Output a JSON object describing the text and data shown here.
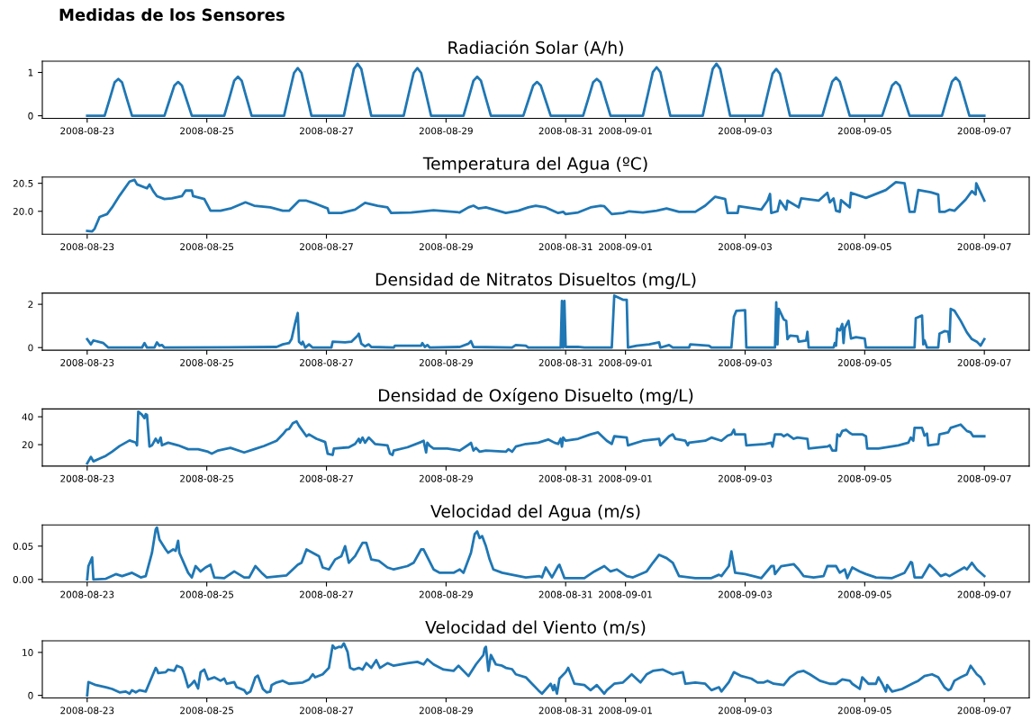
{
  "chart_data": [
    {
      "type": "line",
      "title": "Radiación Solar (A/h)",
      "annotations": [
        "Medidas de los Sensores"
      ],
      "color": "#1f77b4",
      "x": [
        "2008-08-23T00:00",
        "2008-08-23T07:00",
        "2008-08-23T09:00",
        "2008-08-23T11:00",
        "2008-08-23T12:30",
        "2008-08-23T14:00",
        "2008-08-23T16:00",
        "2008-08-23T18:00",
        "2008-08-24T07:00",
        "2008-08-24T09:00",
        "2008-08-24T11:00",
        "2008-08-24T12:30",
        "2008-08-24T14:00",
        "2008-08-24T16:00",
        "2008-08-24T18:00",
        "2008-08-25T07:00",
        "2008-08-25T09:00",
        "2008-08-25T11:00",
        "2008-08-25T12:30",
        "2008-08-25T14:00",
        "2008-08-25T16:00",
        "2008-08-25T18:00",
        "2008-08-26T07:00",
        "2008-08-26T09:00",
        "2008-08-26T11:00",
        "2008-08-26T12:30",
        "2008-08-26T14:00",
        "2008-08-26T16:00",
        "2008-08-26T18:00",
        "2008-08-27T07:00",
        "2008-08-27T09:00",
        "2008-08-27T11:00",
        "2008-08-27T12:30",
        "2008-08-27T14:00",
        "2008-08-27T16:00",
        "2008-08-27T18:00",
        "2008-08-28T07:00",
        "2008-08-28T09:00",
        "2008-08-28T11:00",
        "2008-08-28T12:30",
        "2008-08-28T14:00",
        "2008-08-28T16:00",
        "2008-08-28T18:00",
        "2008-08-29T07:00",
        "2008-08-29T09:00",
        "2008-08-29T11:00",
        "2008-08-29T12:30",
        "2008-08-29T14:00",
        "2008-08-29T16:00",
        "2008-08-29T18:00",
        "2008-08-30T07:00",
        "2008-08-30T09:00",
        "2008-08-30T11:00",
        "2008-08-30T12:30",
        "2008-08-30T14:00",
        "2008-08-30T16:00",
        "2008-08-30T18:00",
        "2008-08-31T07:00",
        "2008-08-31T09:00",
        "2008-08-31T11:00",
        "2008-08-31T12:30",
        "2008-08-31T14:00",
        "2008-08-31T16:00",
        "2008-08-31T18:00",
        "2008-09-01T07:00",
        "2008-09-01T09:00",
        "2008-09-01T11:00",
        "2008-09-01T12:30",
        "2008-09-01T14:00",
        "2008-09-01T16:00",
        "2008-09-01T18:00",
        "2008-09-02T07:00",
        "2008-09-02T09:00",
        "2008-09-02T11:00",
        "2008-09-02T12:30",
        "2008-09-02T14:00",
        "2008-09-02T16:00",
        "2008-09-02T18:00",
        "2008-09-03T07:00",
        "2008-09-03T09:00",
        "2008-09-03T11:00",
        "2008-09-03T12:30",
        "2008-09-03T14:00",
        "2008-09-03T16:00",
        "2008-09-03T18:00",
        "2008-09-04T07:00",
        "2008-09-04T09:00",
        "2008-09-04T11:00",
        "2008-09-04T12:30",
        "2008-09-04T14:00",
        "2008-09-04T16:00",
        "2008-09-04T18:00",
        "2008-09-05T07:00",
        "2008-09-05T09:00",
        "2008-09-05T11:00",
        "2008-09-05T12:30",
        "2008-09-05T14:00",
        "2008-09-05T16:00",
        "2008-09-05T18:00",
        "2008-09-06T07:00",
        "2008-09-06T09:00",
        "2008-09-06T11:00",
        "2008-09-06T12:30",
        "2008-09-06T14:00",
        "2008-09-06T16:00",
        "2008-09-06T18:00",
        "2008-09-07T00:00"
      ],
      "values": [
        0,
        0,
        0.38,
        0.77,
        0.85,
        0.77,
        0.38,
        0,
        0,
        0.35,
        0.7,
        0.78,
        0.7,
        0.35,
        0,
        0,
        0.4,
        0.81,
        0.9,
        0.81,
        0.4,
        0,
        0,
        0.5,
        0.99,
        1.1,
        0.99,
        0.5,
        0,
        0,
        0.54,
        1.08,
        1.2,
        1.08,
        0.54,
        0,
        0,
        0.5,
        0.99,
        1.1,
        0.99,
        0.5,
        0,
        0,
        0.4,
        0.81,
        0.9,
        0.81,
        0.4,
        0,
        0,
        0.35,
        0.7,
        0.78,
        0.7,
        0.35,
        0,
        0,
        0.38,
        0.77,
        0.85,
        0.77,
        0.38,
        0,
        0,
        0.5,
        1.01,
        1.12,
        1.01,
        0.5,
        0,
        0,
        0.54,
        1.08,
        1.2,
        1.08,
        0.54,
        0,
        0,
        0.49,
        0.97,
        1.08,
        0.97,
        0.49,
        0,
        0,
        0.4,
        0.79,
        0.88,
        0.79,
        0.4,
        0,
        0,
        0.35,
        0.7,
        0.78,
        0.7,
        0.35,
        0,
        0,
        0.4,
        0.79,
        0.88,
        0.79,
        0.4,
        0,
        0
      ],
      "xlim": [
        "2008-08-22T06:00",
        "2008-09-07T18:00"
      ],
      "xticks": [
        "2008-08-23",
        "2008-08-25",
        "2008-08-27",
        "2008-08-29",
        "2008-08-31",
        "2008-09-01",
        "2008-09-03",
        "2008-09-05",
        "2008-09-07"
      ],
      "ylim": [
        -0.06,
        1.26
      ],
      "yticks": [
        0,
        1
      ]
    },
    {
      "type": "line",
      "title": "Temperatura del Agua (ºC)",
      "color": "#1f77b4",
      "x": [
        "2008-08-23T00:00",
        "2008-08-23T02:00",
        "2008-08-23T03:00",
        "2008-08-23T05:00",
        "2008-08-23T08:00",
        "2008-08-23T10:00",
        "2008-08-23T13:00",
        "2008-08-23T17:00",
        "2008-08-23T19:00",
        "2008-08-23T20:00",
        "2008-08-24T00:00",
        "2008-08-24T01:00",
        "2008-08-24T02:30",
        "2008-08-24T04:00",
        "2008-08-24T07:00",
        "2008-08-24T10:00",
        "2008-08-24T14:00",
        "2008-08-24T15:30",
        "2008-08-24T18:00",
        "2008-08-24T18:30",
        "2008-08-24T23:00",
        "2008-08-25T01:30",
        "2008-08-25T05:30",
        "2008-08-25T09:30",
        "2008-08-25T15:30",
        "2008-08-25T19:00",
        "2008-08-26T01:30",
        "2008-08-26T06:30",
        "2008-08-26T09:00",
        "2008-08-26T13:00",
        "2008-08-26T16:00",
        "2008-08-26T20:00",
        "2008-08-27T00:30",
        "2008-08-27T01:00",
        "2008-08-27T06:00",
        "2008-08-27T11:30",
        "2008-08-27T15:30",
        "2008-08-27T20:30",
        "2008-08-28T00:30",
        "2008-08-28T02:00",
        "2008-08-28T10:00",
        "2008-08-28T19:00",
        "2008-08-29T05:30",
        "2008-08-29T09:00",
        "2008-08-29T11:00",
        "2008-08-29T13:00",
        "2008-08-29T16:00",
        "2008-08-30T00:00",
        "2008-08-30T05:00",
        "2008-08-30T09:00",
        "2008-08-30T12:00",
        "2008-08-30T16:00",
        "2008-08-30T21:00",
        "2008-08-30T23:00",
        "2008-08-31T00:00",
        "2008-08-31T05:00",
        "2008-08-31T10:00",
        "2008-08-31T14:00",
        "2008-08-31T15:30",
        "2008-08-31T18:30",
        "2008-08-31T23:00",
        "2008-09-01T01:30",
        "2008-09-01T07:00",
        "2008-09-01T12:30",
        "2008-09-01T16:30",
        "2008-09-01T21:30",
        "2008-09-02T04:00",
        "2008-09-02T08:00",
        "2008-09-02T12:00",
        "2008-09-02T16:00",
        "2008-09-02T17:00",
        "2008-09-02T21:00",
        "2008-09-02T21:30",
        "2008-09-03T06:30",
        "2008-09-03T09:00",
        "2008-09-03T10:00",
        "2008-09-03T10:30",
        "2008-09-03T13:00",
        "2008-09-03T14:00",
        "2008-09-03T16:30",
        "2008-09-03T17:00",
        "2008-09-03T21:30",
        "2008-09-03T22:30",
        "2008-09-04T05:30",
        "2008-09-04T09:00",
        "2008-09-04T10:00",
        "2008-09-04T11:30",
        "2008-09-04T12:30",
        "2008-09-04T14:00",
        "2008-09-04T14:30",
        "2008-09-04T18:00",
        "2008-09-04T18:30",
        "2008-09-05T00:30",
        "2008-09-05T08:30",
        "2008-09-05T12:30",
        "2008-09-05T16:00",
        "2008-09-05T18:00",
        "2008-09-05T20:00",
        "2008-09-05T21:30",
        "2008-09-06T02:30",
        "2008-09-06T05:30",
        "2008-09-06T06:00",
        "2008-09-06T08:00",
        "2008-09-06T10:00",
        "2008-09-06T12:00",
        "2008-09-06T16:30",
        "2008-09-06T19:00",
        "2008-09-06T20:30",
        "2008-09-06T20:45",
        "2008-09-07T00:00"
      ],
      "values": [
        19.65,
        19.64,
        19.69,
        19.9,
        19.95,
        20.07,
        20.28,
        20.53,
        20.56,
        20.48,
        20.41,
        20.48,
        20.36,
        20.27,
        20.22,
        20.23,
        20.27,
        20.37,
        20.37,
        20.27,
        20.22,
        20.01,
        20.01,
        20.05,
        20.16,
        20.1,
        20.07,
        20.01,
        20.01,
        20.19,
        20.19,
        20.13,
        20.05,
        19.97,
        19.97,
        20.03,
        20.15,
        20.1,
        20.07,
        19.97,
        19.98,
        20.02,
        19.98,
        20.07,
        20.1,
        20.05,
        20.07,
        19.97,
        20.01,
        20.07,
        20.1,
        20.07,
        19.97,
        19.99,
        19.95,
        19.98,
        20.07,
        20.1,
        20.09,
        19.95,
        19.97,
        20.0,
        19.98,
        20.01,
        20.05,
        19.99,
        19.99,
        20.1,
        20.26,
        20.22,
        19.97,
        19.97,
        20.09,
        20.03,
        20.19,
        20.31,
        19.97,
        20.0,
        20.19,
        20.03,
        20.19,
        20.07,
        20.23,
        20.19,
        20.33,
        20.16,
        20.23,
        20.01,
        19.99,
        20.2,
        20.07,
        20.33,
        20.24,
        20.38,
        20.52,
        20.5,
        19.99,
        19.99,
        20.38,
        20.34,
        20.3,
        19.99,
        19.99,
        20.03,
        20.01,
        20.21,
        20.36,
        20.3,
        20.5,
        20.19
      ],
      "xlim": [
        "2008-08-22T06:00",
        "2008-09-07T18:00"
      ],
      "xticks": [
        "2008-08-23",
        "2008-08-25",
        "2008-08-27",
        "2008-08-29",
        "2008-08-31",
        "2008-09-01",
        "2008-09-03",
        "2008-09-05",
        "2008-09-07"
      ],
      "ylim": [
        19.59,
        20.61
      ],
      "yticks": [
        {
          "value": 20,
          "label": "20.0"
        },
        20.5
      ]
    },
    {
      "type": "line",
      "title": "Densidad de Nitratos Disueltos (mg/L)",
      "color": "#1f77b4",
      "x": [
        "2008-08-23T00:00",
        "2008-08-23T01:30",
        "2008-08-23T02:30",
        "2008-08-23T06:30",
        "2008-08-23T08:30",
        "2008-08-23T22:00",
        "2008-08-23T23:00",
        "2008-08-24T00:00",
        "2008-08-24T03:00",
        "2008-08-24T04:00",
        "2008-08-24T05:00",
        "2008-08-24T06:00",
        "2008-08-24T07:00",
        "2008-08-26T04:00",
        "2008-08-26T06:30",
        "2008-08-26T09:00",
        "2008-08-26T10:00",
        "2008-08-26T11:30",
        "2008-08-26T12:30",
        "2008-08-26T13:00",
        "2008-08-26T14:00",
        "2008-08-26T14:30",
        "2008-08-26T15:30",
        "2008-08-26T17:00",
        "2008-08-26T18:30",
        "2008-08-27T02:00",
        "2008-08-27T02:30",
        "2008-08-27T07:30",
        "2008-08-27T10:00",
        "2008-08-27T12:30",
        "2008-08-27T13:00",
        "2008-08-27T14:00",
        "2008-08-27T15:30",
        "2008-08-27T17:00",
        "2008-08-27T18:00",
        "2008-08-28T03:00",
        "2008-08-28T03:30",
        "2008-08-28T14:00",
        "2008-08-28T14:30",
        "2008-08-28T15:30",
        "2008-08-28T16:30",
        "2008-08-28T17:30",
        "2008-08-29T05:30",
        "2008-08-29T09:00",
        "2008-08-29T10:00",
        "2008-08-29T11:00",
        "2008-08-30T02:30",
        "2008-08-30T04:00",
        "2008-08-30T08:00",
        "2008-08-30T09:00",
        "2008-08-30T22:00",
        "2008-08-30T22:30",
        "2008-08-30T23:00",
        "2008-08-30T23:30",
        "2008-08-31T00:00",
        "2008-08-31T05:00",
        "2008-08-31T07:30",
        "2008-08-31T18:30",
        "2008-08-31T19:30",
        "2008-08-31T23:00",
        "2008-09-01T00:30",
        "2008-09-01T01:00",
        "2008-09-01T04:30",
        "2008-09-01T09:30",
        "2008-09-01T13:30",
        "2008-09-01T14:00",
        "2008-09-01T17:30",
        "2008-09-01T19:00",
        "2008-09-02T01:30",
        "2008-09-02T02:00",
        "2008-09-02T09:30",
        "2008-09-02T10:30",
        "2008-09-02T18:30",
        "2008-09-02T19:30",
        "2008-09-02T20:30",
        "2008-09-03T00:00",
        "2008-09-03T00:30",
        "2008-09-03T12:00",
        "2008-09-03T12:30",
        "2008-09-03T13:00",
        "2008-09-03T13:30",
        "2008-09-03T15:30",
        "2008-09-03T16:30",
        "2008-09-03T17:00",
        "2008-09-03T18:00",
        "2008-09-03T21:00",
        "2008-09-03T21:30",
        "2008-09-04T00:30",
        "2008-09-04T01:00",
        "2008-09-04T01:30",
        "2008-09-04T11:30",
        "2008-09-04T12:00",
        "2008-09-04T12:30",
        "2008-09-04T13:00",
        "2008-09-04T14:00",
        "2008-09-04T15:00",
        "2008-09-04T15:30",
        "2008-09-04T16:00",
        "2008-09-04T17:30",
        "2008-09-04T18:30",
        "2008-09-04T20:30",
        "2008-09-05T00:00",
        "2008-09-05T00:30",
        "2008-09-05T20:00",
        "2008-09-05T20:30",
        "2008-09-05T23:00",
        "2008-09-05T23:30",
        "2008-09-06T00:00",
        "2008-09-06T01:00",
        "2008-09-06T05:30",
        "2008-09-06T06:00",
        "2008-09-06T08:00",
        "2008-09-06T09:30",
        "2008-09-06T10:00",
        "2008-09-06T10:30",
        "2008-09-06T12:00",
        "2008-09-06T14:30",
        "2008-09-06T17:00",
        "2008-09-06T19:00",
        "2008-09-06T21:00",
        "2008-09-06T21:30",
        "2008-09-06T22:30",
        "2008-09-07T00:00"
      ],
      "values": [
        0.39,
        0.15,
        0.33,
        0.21,
        0,
        0,
        0.21,
        0,
        0,
        0.24,
        0.09,
        0.12,
        0,
        0.03,
        0.15,
        0.21,
        0.39,
        1.15,
        1.6,
        0.27,
        0.15,
        0.27,
        0,
        0.15,
        0,
        0,
        0.27,
        0.24,
        0.27,
        0.55,
        0.64,
        0.18,
        0.06,
        0.15,
        0.03,
        0,
        0.09,
        0.09,
        0.21,
        0.03,
        0.12,
        0,
        0.03,
        0.18,
        0.3,
        0.03,
        0,
        0.12,
        0.09,
        0,
        0,
        2.15,
        0,
        2.15,
        0.03,
        0.03,
        0,
        0,
        2.4,
        2.21,
        2.21,
        0,
        0.09,
        0.15,
        0.24,
        0,
        0.12,
        0,
        0,
        0.15,
        0.09,
        0,
        0,
        1.42,
        1.7,
        1.73,
        0,
        0,
        2.09,
        0.15,
        1.79,
        1.3,
        1.24,
        0.39,
        0.55,
        0.52,
        0.27,
        0.33,
        0.73,
        0,
        0,
        0.21,
        0.09,
        0.88,
        0.79,
        1.09,
        0.21,
        0.91,
        1.24,
        0.42,
        0.48,
        0.42,
        0,
        0,
        1.36,
        1.48,
        0.15,
        0.33,
        0,
        0,
        0.64,
        0.76,
        0.73,
        0.27,
        1.79,
        1.7,
        1.24,
        0.7,
        0.39,
        0.27,
        0.21,
        0.09,
        0.39
      ],
      "xlim": [
        "2008-08-22T06:00",
        "2008-09-07T18:00"
      ],
      "xticks": [
        "2008-08-23",
        "2008-08-25",
        "2008-08-27",
        "2008-08-29",
        "2008-08-31",
        "2008-09-01",
        "2008-09-03",
        "2008-09-05",
        "2008-09-07"
      ],
      "ylim": [
        -0.12,
        2.52
      ],
      "yticks": [
        0,
        2
      ]
    },
    {
      "type": "line",
      "title": "Densidad de Oxígeno Disuelto (mg/L)",
      "color": "#1f77b4",
      "x": [
        "2008-08-23T00:00",
        "2008-08-23T01:30",
        "2008-08-23T02:30",
        "2008-08-23T05:00",
        "2008-08-23T07:30",
        "2008-08-23T10:00",
        "2008-08-23T13:00",
        "2008-08-23T17:00",
        "2008-08-23T19:30",
        "2008-08-23T20:00",
        "2008-08-23T20:30",
        "2008-08-23T22:00",
        "2008-08-23T23:00",
        "2008-08-23T23:30",
        "2008-08-24T00:00",
        "2008-08-24T01:00",
        "2008-08-24T02:00",
        "2008-08-24T03:30",
        "2008-08-24T04:30",
        "2008-08-24T05:30",
        "2008-08-24T06:00",
        "2008-08-24T08:30",
        "2008-08-24T12:30",
        "2008-08-24T16:30",
        "2008-08-24T20:30",
        "2008-08-25T00:30",
        "2008-08-25T02:00",
        "2008-08-25T04:30",
        "2008-08-25T09:30",
        "2008-08-25T15:00",
        "2008-08-25T19:00",
        "2008-08-25T23:00",
        "2008-08-26T04:00",
        "2008-08-26T06:30",
        "2008-08-26T08:00",
        "2008-08-26T09:00",
        "2008-08-26T10:30",
        "2008-08-26T12:00",
        "2008-08-26T13:00",
        "2008-08-26T16:00",
        "2008-08-26T17:00",
        "2008-08-26T20:00",
        "2008-08-26T23:30",
        "2008-08-27T00:30",
        "2008-08-27T02:30",
        "2008-08-27T03:00",
        "2008-08-27T09:00",
        "2008-08-27T11:30",
        "2008-08-27T13:00",
        "2008-08-27T13:30",
        "2008-08-27T14:30",
        "2008-08-27T15:30",
        "2008-08-27T17:00",
        "2008-08-27T19:30",
        "2008-08-28T00:30",
        "2008-08-28T01:30",
        "2008-08-28T02:30",
        "2008-08-28T03:00",
        "2008-08-28T08:30",
        "2008-08-28T14:00",
        "2008-08-28T15:00",
        "2008-08-28T16:00",
        "2008-08-28T16:30",
        "2008-08-28T17:30",
        "2008-08-28T19:00",
        "2008-08-29T00:30",
        "2008-08-29T05:30",
        "2008-08-29T09:30",
        "2008-08-29T10:00",
        "2008-08-29T11:00",
        "2008-08-29T12:00",
        "2008-08-29T13:30",
        "2008-08-29T16:00",
        "2008-08-30T00:00",
        "2008-08-30T01:00",
        "2008-08-30T02:30",
        "2008-08-30T04:00",
        "2008-08-30T08:00",
        "2008-08-30T13:00",
        "2008-08-30T17:00",
        "2008-08-30T19:30",
        "2008-08-30T21:00",
        "2008-08-30T22:00",
        "2008-08-30T22:30",
        "2008-08-30T23:00",
        "2008-08-31T00:00",
        "2008-08-31T05:00",
        "2008-08-31T10:00",
        "2008-08-31T13:00",
        "2008-08-31T16:30",
        "2008-08-31T18:30",
        "2008-08-31T19:30",
        "2008-09-01T00:30",
        "2008-09-01T01:00",
        "2008-09-01T07:00",
        "2008-09-01T13:30",
        "2008-09-01T14:00",
        "2008-09-01T17:30",
        "2008-09-01T19:00",
        "2008-09-01T20:00",
        "2008-09-02T00:00",
        "2008-09-02T01:00",
        "2008-09-02T01:30",
        "2008-09-02T08:00",
        "2008-09-02T10:30",
        "2008-09-02T14:30",
        "2008-09-02T17:00",
        "2008-09-02T18:30",
        "2008-09-02T19:30",
        "2008-09-02T20:00",
        "2008-09-03T00:00",
        "2008-09-03T00:30",
        "2008-09-03T08:00",
        "2008-09-03T10:30",
        "2008-09-03T11:00",
        "2008-09-03T12:00",
        "2008-09-03T14:30",
        "2008-09-03T15:30",
        "2008-09-03T17:00",
        "2008-09-03T19:30",
        "2008-09-03T21:00",
        "2008-09-04T01:00",
        "2008-09-04T01:30",
        "2008-09-04T09:00",
        "2008-09-04T10:00",
        "2008-09-04T11:00",
        "2008-09-04T12:30",
        "2008-09-04T13:00",
        "2008-09-04T14:00",
        "2008-09-04T15:00",
        "2008-09-04T16:30",
        "2008-09-04T18:00",
        "2008-09-04T19:00",
        "2008-09-04T23:00",
        "2008-09-05T00:30",
        "2008-09-05T01:00",
        "2008-09-05T05:30",
        "2008-09-05T13:30",
        "2008-09-05T17:30",
        "2008-09-05T18:30",
        "2008-09-05T19:30",
        "2008-09-05T20:00",
        "2008-09-05T23:00",
        "2008-09-06T00:00",
        "2008-09-06T01:00",
        "2008-09-06T01:30",
        "2008-09-06T05:30",
        "2008-09-06T06:00",
        "2008-09-06T09:30",
        "2008-09-06T10:30",
        "2008-09-06T14:30",
        "2008-09-06T17:00",
        "2008-09-06T18:30",
        "2008-09-06T19:30",
        "2008-09-07T00:00"
      ],
      "values": [
        6.5,
        11.2,
        8,
        10,
        12,
        15,
        19,
        23,
        21.5,
        19.5,
        43.7,
        41.4,
        39,
        41.9,
        41.4,
        18.6,
        19.5,
        24.2,
        21.4,
        25.1,
        19.5,
        21.4,
        19.5,
        16.7,
        16.7,
        14.9,
        13.5,
        15.8,
        17.7,
        14.4,
        16.7,
        19.1,
        22.8,
        27.4,
        30.7,
        31.2,
        35.3,
        36.7,
        33.5,
        26,
        27.4,
        24.2,
        21.9,
        13.5,
        12.6,
        17.2,
        18.1,
        20.5,
        24.2,
        21.4,
        25.1,
        21.4,
        25.1,
        20.5,
        19.5,
        13.5,
        12.6,
        15.8,
        18.1,
        21.9,
        22.8,
        14.4,
        21.4,
        19.1,
        17.2,
        17.2,
        15.8,
        20.5,
        21.4,
        15.8,
        17.7,
        14.9,
        15.8,
        14.9,
        16.7,
        14.9,
        18.6,
        20.5,
        21.4,
        23.7,
        21.4,
        20.5,
        24.2,
        18.6,
        25.1,
        22.8,
        24.2,
        27.4,
        28.8,
        22.8,
        20.5,
        26,
        25.1,
        19.5,
        22.8,
        24.2,
        19.5,
        26,
        27.4,
        24.2,
        22.8,
        19.5,
        21.4,
        22.8,
        25.1,
        22.8,
        26.5,
        27.4,
        30.7,
        27.4,
        27.4,
        19.5,
        20.5,
        21.4,
        18.6,
        27.4,
        27.4,
        26,
        27.4,
        24.2,
        25.1,
        24.2,
        17.2,
        18.6,
        19.5,
        15.8,
        15.8,
        27.4,
        26,
        29.8,
        30.7,
        28.4,
        27.4,
        27.4,
        26,
        17.2,
        17.2,
        19.5,
        21.4,
        25.1,
        22.8,
        32.1,
        32.1,
        26.5,
        27.9,
        19.5,
        20.5,
        27.4,
        28.8,
        32.1,
        34.4,
        29.8,
        28.8,
        26,
        26
      ],
      "xlim": [
        "2008-08-22T06:00",
        "2008-09-07T18:00"
      ],
      "xticks": [
        "2008-08-23",
        "2008-08-25",
        "2008-08-27",
        "2008-08-29",
        "2008-08-31",
        "2008-09-01",
        "2008-09-03",
        "2008-09-05",
        "2008-09-07"
      ],
      "ylim": [
        4.6,
        45.6
      ],
      "yticks": [
        20,
        40
      ]
    },
    {
      "type": "line",
      "title": "Velocidad del Agua (m/s)",
      "color": "#1f77b4",
      "x": [
        "2008-08-23T00:00",
        "2008-08-23T00:30",
        "2008-08-23T02:00",
        "2008-08-23T02:30",
        "2008-08-23T07:30",
        "2008-08-23T11:30",
        "2008-08-23T14:00",
        "2008-08-23T18:00",
        "2008-08-23T21:30",
        "2008-08-23T23:30",
        "2008-08-24T02:00",
        "2008-08-24T03:30",
        "2008-08-24T04:00",
        "2008-08-24T05:00",
        "2008-08-24T07:30",
        "2008-08-24T08:30",
        "2008-08-24T10:30",
        "2008-08-24T11:30",
        "2008-08-24T12:30",
        "2008-08-24T13:00",
        "2008-08-24T16:30",
        "2008-08-24T18:00",
        "2008-08-24T19:30",
        "2008-08-24T21:30",
        "2008-08-24T23:30",
        "2008-08-25T01:30",
        "2008-08-25T03:00",
        "2008-08-25T07:00",
        "2008-08-25T11:00",
        "2008-08-25T15:00",
        "2008-08-25T17:00",
        "2008-08-25T19:30",
        "2008-08-25T22:00",
        "2008-08-26T00:00",
        "2008-08-26T08:00",
        "2008-08-26T10:30",
        "2008-08-26T12:30",
        "2008-08-26T14:00",
        "2008-08-26T16:00",
        "2008-08-26T18:30",
        "2008-08-26T21:00",
        "2008-08-26T22:30",
        "2008-08-27T01:00",
        "2008-08-27T03:30",
        "2008-08-27T06:00",
        "2008-08-27T07:30",
        "2008-08-27T09:00",
        "2008-08-27T11:30",
        "2008-08-27T14:30",
        "2008-08-27T16:00",
        "2008-08-27T18:00",
        "2008-08-27T21:00",
        "2008-08-28T00:30",
        "2008-08-28T03:00",
        "2008-08-28T08:30",
        "2008-08-28T11:00",
        "2008-08-28T14:00",
        "2008-08-28T15:00",
        "2008-08-28T17:00",
        "2008-08-28T19:00",
        "2008-08-28T21:30",
        "2008-08-29T03:00",
        "2008-08-29T05:30",
        "2008-08-29T07:00",
        "2008-08-29T10:00",
        "2008-08-29T11:30",
        "2008-08-29T12:30",
        "2008-08-29T13:30",
        "2008-08-29T14:30",
        "2008-08-29T16:00",
        "2008-08-29T17:30",
        "2008-08-29T19:00",
        "2008-08-29T22:30",
        "2008-08-30T02:30",
        "2008-08-30T08:00",
        "2008-08-30T13:30",
        "2008-08-30T14:30",
        "2008-08-30T16:00",
        "2008-08-30T18:30",
        "2008-08-30T21:00",
        "2008-08-30T21:30",
        "2008-08-30T23:30",
        "2008-08-31T07:30",
        "2008-08-31T11:30",
        "2008-08-31T15:30",
        "2008-08-31T18:00",
        "2008-08-31T20:30",
        "2008-09-01T00:30",
        "2008-09-01T03:00",
        "2008-09-01T08:30",
        "2008-09-01T11:00",
        "2008-09-01T13:30",
        "2008-09-01T16:30",
        "2008-09-01T19:00",
        "2008-09-01T21:30",
        "2008-09-02T04:00",
        "2008-09-02T10:30",
        "2008-09-02T13:30",
        "2008-09-02T14:30",
        "2008-09-02T17:30",
        "2008-09-02T18:30",
        "2008-09-02T20:00",
        "2008-09-03T00:00",
        "2008-09-03T06:30",
        "2008-09-03T10:30",
        "2008-09-03T11:30",
        "2008-09-03T12:00",
        "2008-09-03T14:30",
        "2008-09-03T19:30",
        "2008-09-03T21:30",
        "2008-09-03T23:30",
        "2008-09-04T03:30",
        "2008-09-04T07:30",
        "2008-09-04T09:00",
        "2008-09-04T12:30",
        "2008-09-04T14:00",
        "2008-09-04T16:00",
        "2008-09-04T17:00",
        "2008-09-04T19:00",
        "2008-09-04T22:00",
        "2008-09-05T00:30",
        "2008-09-05T04:30",
        "2008-09-05T11:00",
        "2008-09-05T16:00",
        "2008-09-05T18:30",
        "2008-09-05T19:00",
        "2008-09-05T20:00",
        "2008-09-05T23:00",
        "2008-09-06T02:00",
        "2008-09-06T04:00",
        "2008-09-06T06:30",
        "2008-09-06T08:30",
        "2008-09-06T10:00",
        "2008-09-06T16:00",
        "2008-09-06T17:00",
        "2008-09-06T19:00",
        "2008-09-06T21:00",
        "2008-09-07T00:00"
      ],
      "values": [
        0,
        0.02,
        0.033,
        0,
        0.001,
        0.008,
        0.005,
        0.01,
        0.003,
        0.005,
        0.04,
        0.075,
        0.078,
        0.06,
        0.045,
        0.04,
        0.045,
        0.043,
        0.058,
        0.04,
        0.01,
        0.003,
        0.02,
        0.012,
        0.018,
        0.022,
        0.003,
        0.002,
        0.012,
        0.003,
        0.003,
        0.02,
        0.01,
        0.003,
        0.006,
        0.015,
        0.022,
        0.025,
        0.045,
        0.04,
        0.035,
        0.018,
        0.015,
        0.03,
        0.035,
        0.05,
        0.025,
        0.035,
        0.055,
        0.055,
        0.03,
        0.028,
        0.018,
        0.015,
        0.02,
        0.025,
        0.045,
        0.045,
        0.03,
        0.015,
        0.01,
        0.01,
        0.015,
        0.01,
        0.04,
        0.068,
        0.072,
        0.062,
        0.065,
        0.05,
        0.03,
        0.015,
        0.01,
        0.007,
        0.003,
        0.005,
        0.003,
        0.018,
        0.003,
        0.02,
        0.022,
        0.002,
        0.002,
        0.012,
        0.02,
        0.012,
        0.015,
        0.005,
        0.003,
        0.012,
        0.025,
        0.037,
        0.032,
        0.025,
        0.005,
        0.002,
        0.002,
        0.007,
        0.005,
        0.02,
        0.042,
        0.01,
        0.008,
        0.002,
        0.02,
        0.02,
        0.008,
        0.02,
        0.023,
        0.015,
        0.005,
        0.003,
        0.005,
        0.02,
        0.02,
        0.01,
        0.015,
        0.002,
        0.018,
        0.012,
        0.008,
        0.003,
        0.002,
        0.01,
        0.026,
        0.025,
        0.003,
        0.003,
        0.022,
        0.015,
        0.005,
        0.008,
        0.005,
        0.018,
        0.015,
        0.025,
        0.015,
        0.005
      ],
      "xlim": [
        "2008-08-22T06:00",
        "2008-09-07T18:00"
      ],
      "xticks": [
        "2008-08-23",
        "2008-08-25",
        "2008-08-27",
        "2008-08-29",
        "2008-08-31",
        "2008-09-01",
        "2008-09-03",
        "2008-09-05",
        "2008-09-07"
      ],
      "ylim": [
        -0.0039,
        0.0819
      ],
      "yticks": [
        {
          "value": 0,
          "label": "0.00"
        },
        0.05
      ]
    },
    {
      "type": "line",
      "title": "Velocidad del Viento (m/s)",
      "color": "#1f77b4",
      "x": [
        "2008-08-23T00:00",
        "2008-08-23T00:30",
        "2008-08-23T03:30",
        "2008-08-23T07:30",
        "2008-08-23T10:00",
        "2008-08-23T13:00",
        "2008-08-23T15:30",
        "2008-08-23T17:00",
        "2008-08-23T18:00",
        "2008-08-23T19:30",
        "2008-08-23T21:00",
        "2008-08-23T23:30",
        "2008-08-24T03:30",
        "2008-08-24T04:00",
        "2008-08-24T04:30",
        "2008-08-24T07:30",
        "2008-08-24T08:30",
        "2008-08-24T11:00",
        "2008-08-24T12:00",
        "2008-08-24T14:00",
        "2008-08-24T15:00",
        "2008-08-24T16:30",
        "2008-08-24T18:00",
        "2008-08-24T19:00",
        "2008-08-24T20:30",
        "2008-08-24T21:30",
        "2008-08-24T23:00",
        "2008-08-25T00:30",
        "2008-08-25T03:00",
        "2008-08-25T05:30",
        "2008-08-25T07:00",
        "2008-08-25T08:00",
        "2008-08-25T11:00",
        "2008-08-25T12:00",
        "2008-08-25T15:00",
        "2008-08-25T16:00",
        "2008-08-25T17:30",
        "2008-08-25T19:30",
        "2008-08-25T20:30",
        "2008-08-25T22:30",
        "2008-08-26T00:00",
        "2008-08-26T01:30",
        "2008-08-26T02:00",
        "2008-08-26T04:00",
        "2008-08-26T06:30",
        "2008-08-26T09:00",
        "2008-08-26T14:30",
        "2008-08-26T17:00",
        "2008-08-26T18:30",
        "2008-08-26T19:30",
        "2008-08-26T22:30",
        "2008-08-27T01:00",
        "2008-08-27T02:30",
        "2008-08-27T03:30",
        "2008-08-27T05:00",
        "2008-08-27T06:00",
        "2008-08-27T07:00",
        "2008-08-27T08:30",
        "2008-08-27T09:30",
        "2008-08-27T11:00",
        "2008-08-27T13:00",
        "2008-08-27T14:30",
        "2008-08-27T16:00",
        "2008-08-27T18:00",
        "2008-08-27T20:00",
        "2008-08-27T21:30",
        "2008-08-28T00:30",
        "2008-08-28T03:00",
        "2008-08-28T08:30",
        "2008-08-28T12:30",
        "2008-08-28T15:00",
        "2008-08-28T16:30",
        "2008-08-28T19:00",
        "2008-08-28T23:00",
        "2008-08-29T03:00",
        "2008-08-29T05:00",
        "2008-08-29T09:00",
        "2008-08-29T12:00",
        "2008-08-29T15:00",
        "2008-08-29T15:30",
        "2008-08-29T16:00",
        "2008-08-29T17:00",
        "2008-08-29T18:00",
        "2008-08-29T20:00",
        "2008-08-29T22:30",
        "2008-08-30T00:00",
        "2008-08-30T02:30",
        "2008-08-30T04:00",
        "2008-08-30T08:00",
        "2008-08-30T10:30",
        "2008-08-30T13:00",
        "2008-08-30T14:30",
        "2008-08-30T18:00",
        "2008-08-30T19:00",
        "2008-08-30T19:30",
        "2008-08-30T20:30",
        "2008-08-30T21:30",
        "2008-08-31T00:00",
        "2008-08-31T01:00",
        "2008-08-31T03:30",
        "2008-08-31T07:30",
        "2008-08-31T10:00",
        "2008-08-31T12:30",
        "2008-08-31T15:30",
        "2008-08-31T16:30",
        "2008-08-31T19:30",
        "2008-08-31T23:00",
        "2008-09-01T02:30",
        "2008-09-01T06:00",
        "2008-09-01T08:30",
        "2008-09-01T11:00",
        "2008-09-01T15:00",
        "2008-09-01T19:00",
        "2008-09-01T23:00",
        "2008-09-02T00:00",
        "2008-09-02T04:00",
        "2008-09-02T08:00",
        "2008-09-02T10:30",
        "2008-09-02T13:30",
        "2008-09-02T14:30",
        "2008-09-02T17:30",
        "2008-09-02T19:30",
        "2008-09-02T22:30",
        "2008-09-03T02:30",
        "2008-09-03T05:00",
        "2008-09-03T07:30",
        "2008-09-03T09:00",
        "2008-09-03T11:30",
        "2008-09-03T15:30",
        "2008-09-03T18:00",
        "2008-09-03T21:00",
        "2008-09-03T23:30",
        "2008-09-04T02:00",
        "2008-09-04T06:00",
        "2008-09-04T10:00",
        "2008-09-04T12:30",
        "2008-09-04T15:00",
        "2008-09-04T18:00",
        "2008-09-04T19:00",
        "2008-09-04T22:00",
        "2008-09-04T23:00",
        "2008-09-05T01:30",
        "2008-09-05T04:30",
        "2008-09-05T05:30",
        "2008-09-05T07:00",
        "2008-09-05T08:30",
        "2008-09-05T09:00",
        "2008-09-05T11:00",
        "2008-09-05T15:00",
        "2008-09-05T19:00",
        "2008-09-05T21:30",
        "2008-09-06T00:00",
        "2008-09-06T03:00",
        "2008-09-06T05:30",
        "2008-09-06T08:00",
        "2008-09-06T09:30",
        "2008-09-06T10:30",
        "2008-09-06T12:00",
        "2008-09-06T14:30",
        "2008-09-06T17:00",
        "2008-09-06T18:30",
        "2008-09-06T21:00",
        "2008-09-06T22:30",
        "2008-09-07T00:00"
      ],
      "values": [
        0,
        3.1,
        2.4,
        1.9,
        1.5,
        0.7,
        0.9,
        0.4,
        1.2,
        0.7,
        1.2,
        0.9,
        6.4,
        6,
        5.2,
        5.4,
        6,
        5.7,
        6.9,
        6.4,
        4.9,
        1.9,
        2.7,
        3.4,
        1.6,
        5.4,
        6,
        3.7,
        4.2,
        3.4,
        3.9,
        2.7,
        3.1,
        1.9,
        1.2,
        0.4,
        0.9,
        4.2,
        4.6,
        1.5,
        0.7,
        0.9,
        2.4,
        3,
        3.4,
        2.7,
        3,
        3.7,
        4.9,
        4.2,
        4.9,
        6.4,
        11.6,
        10.9,
        11.3,
        11.2,
        12.1,
        10.1,
        6.4,
        6,
        6.4,
        6,
        7.5,
        6.4,
        8.2,
        6.4,
        7.5,
        6.9,
        7.5,
        7.8,
        7.2,
        8.4,
        7.2,
        6,
        5.7,
        6.9,
        4.5,
        7.2,
        9.4,
        10.9,
        11.3,
        5.7,
        9.4,
        7.2,
        6.9,
        6.4,
        6.1,
        4.9,
        4.2,
        2.7,
        1.2,
        0.4,
        2.7,
        1.2,
        2.4,
        0.4,
        3.9,
        5.4,
        6.4,
        2.7,
        2.4,
        1.2,
        2.4,
        0.4,
        1.2,
        2.7,
        3,
        4.9,
        3,
        4.9,
        5.7,
        6,
        4.9,
        5.4,
        2.7,
        3,
        2.7,
        1.2,
        1.9,
        0.9,
        3.1,
        5.4,
        4.5,
        3.9,
        3,
        3,
        3.4,
        2.7,
        2.4,
        4.2,
        5.4,
        5.7,
        4.9,
        3.4,
        2.7,
        2.7,
        3.7,
        3.4,
        2.7,
        1.5,
        4.2,
        2.7,
        2.7,
        4.2,
        2.7,
        0.9,
        2.4,
        0.9,
        1.5,
        2.7,
        3.4,
        4.5,
        4.9,
        4.2,
        1.9,
        1.2,
        1.5,
        3.4,
        4.2,
        4.9,
        6.9,
        4.9,
        4.2,
        2.7
      ],
      "xlim": [
        "2008-08-22T06:00",
        "2008-09-07T18:00"
      ],
      "xticks": [
        "2008-08-23",
        "2008-08-25",
        "2008-08-27",
        "2008-08-29",
        "2008-08-31",
        "2008-09-01",
        "2008-09-03",
        "2008-09-05",
        "2008-09-07"
      ],
      "ylim": [
        -0.6,
        12.7
      ],
      "yticks": [
        0,
        10
      ]
    }
  ]
}
